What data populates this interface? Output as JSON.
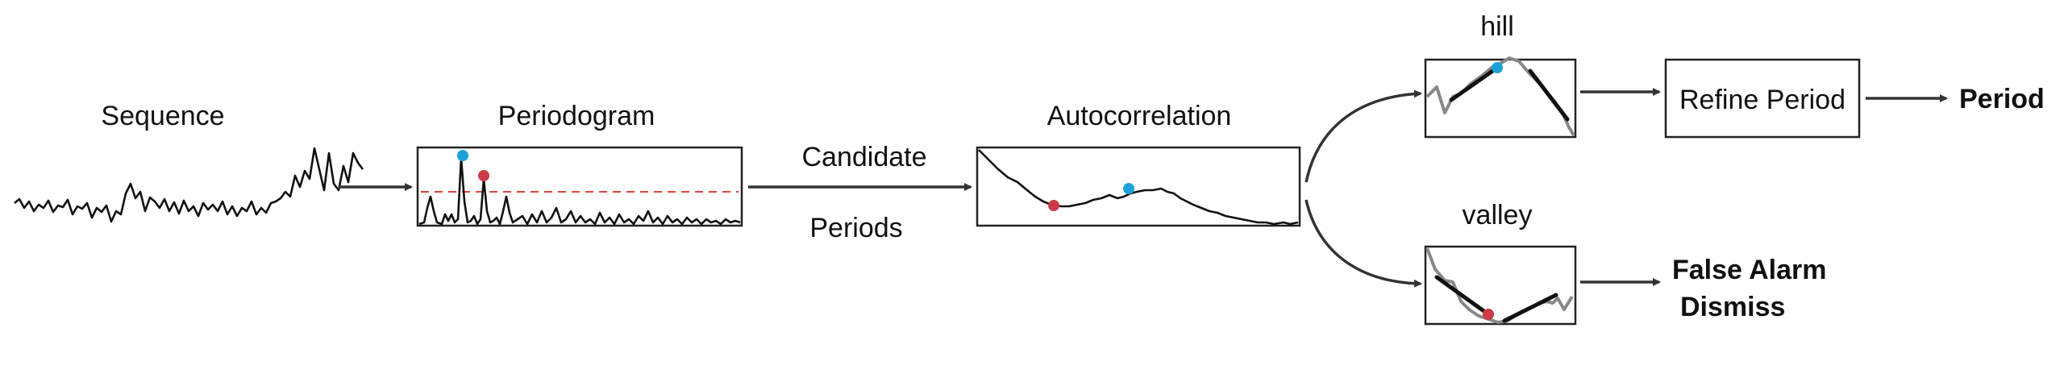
{
  "labels": {
    "sequence": "Sequence",
    "periodogram": "Periodogram",
    "candidate_line1": "Candidate",
    "candidate_line2": "Periods",
    "autocorrelation": "Autocorrelation",
    "hill": "hill",
    "valley": "valley",
    "refine_period": "Refine Period",
    "period": "Period",
    "false_alarm_line1": "False Alarm",
    "false_alarm_line2": "Dismiss"
  },
  "colors": {
    "peak_blue": "#1ba3d9",
    "peak_red": "#cc3b45",
    "threshold_dashed": "#e0453e",
    "line_dark": "#111111",
    "line_gray": "#888888",
    "arrow": "#333333"
  }
}
